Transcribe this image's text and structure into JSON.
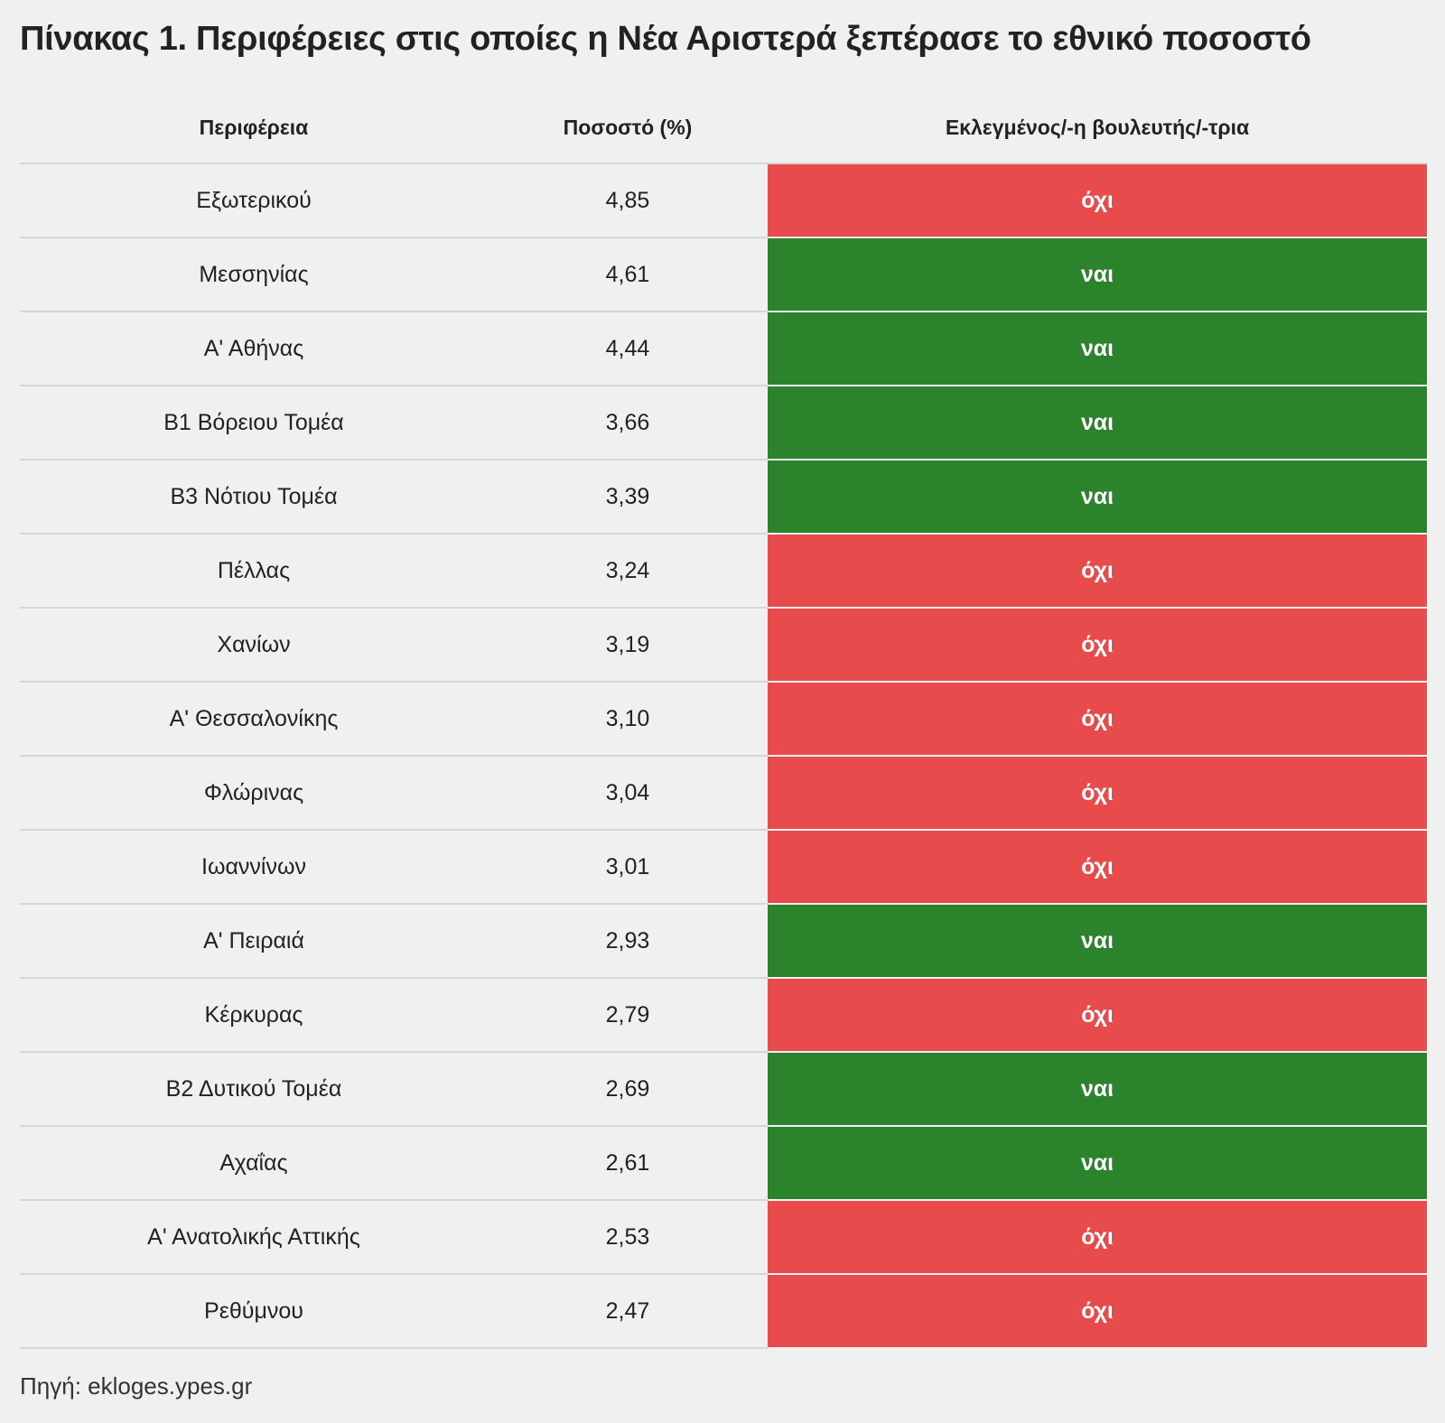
{
  "title": "Πίνακας 1. Περιφέρειες στις οποίες η Νέα Αριστερά ξεπέρασε το εθνικό ποσοστό",
  "table": {
    "headers": {
      "region": "Περιφέρεια",
      "percent": "Ποσοστό (%)",
      "elected": "Εκλεγμένος/-η βουλευτής/-τρια"
    },
    "rows": [
      {
        "region": "Εξωτερικού",
        "percent": "4,85",
        "elected": "όχι"
      },
      {
        "region": "Μεσσηνίας",
        "percent": "4,61",
        "elected": "ναι"
      },
      {
        "region": "Α' Αθήνας",
        "percent": "4,44",
        "elected": "ναι"
      },
      {
        "region": "Β1 Βόρειου Τομέα",
        "percent": "3,66",
        "elected": "ναι"
      },
      {
        "region": "Β3 Νότιου Τομέα",
        "percent": "3,39",
        "elected": "ναι"
      },
      {
        "region": "Πέλλας",
        "percent": "3,24",
        "elected": "όχι"
      },
      {
        "region": "Χανίων",
        "percent": "3,19",
        "elected": "όχι"
      },
      {
        "region": "Α' Θεσσαλονίκης",
        "percent": "3,10",
        "elected": "όχι"
      },
      {
        "region": "Φλώρινας",
        "percent": "3,04",
        "elected": "όχι"
      },
      {
        "region": "Ιωαννίνων",
        "percent": "3,01",
        "elected": "όχι"
      },
      {
        "region": "Α' Πειραιά",
        "percent": "2,93",
        "elected": "ναι"
      },
      {
        "region": "Κέρκυρας",
        "percent": "2,79",
        "elected": "όχι"
      },
      {
        "region": "Β2 Δυτικού Τομέα",
        "percent": "2,69",
        "elected": "ναι"
      },
      {
        "region": "Αχαΐας",
        "percent": "2,61",
        "elected": "ναι"
      },
      {
        "region": "Α' Ανατολικής Αττικής",
        "percent": "2,53",
        "elected": "όχι"
      },
      {
        "region": "Ρεθύμνου",
        "percent": "2,47",
        "elected": "όχι"
      }
    ]
  },
  "colors": {
    "yes": "#2b832b",
    "no": "#e84b4b"
  },
  "source": "Πηγή: ekloges.ypes.gr"
}
